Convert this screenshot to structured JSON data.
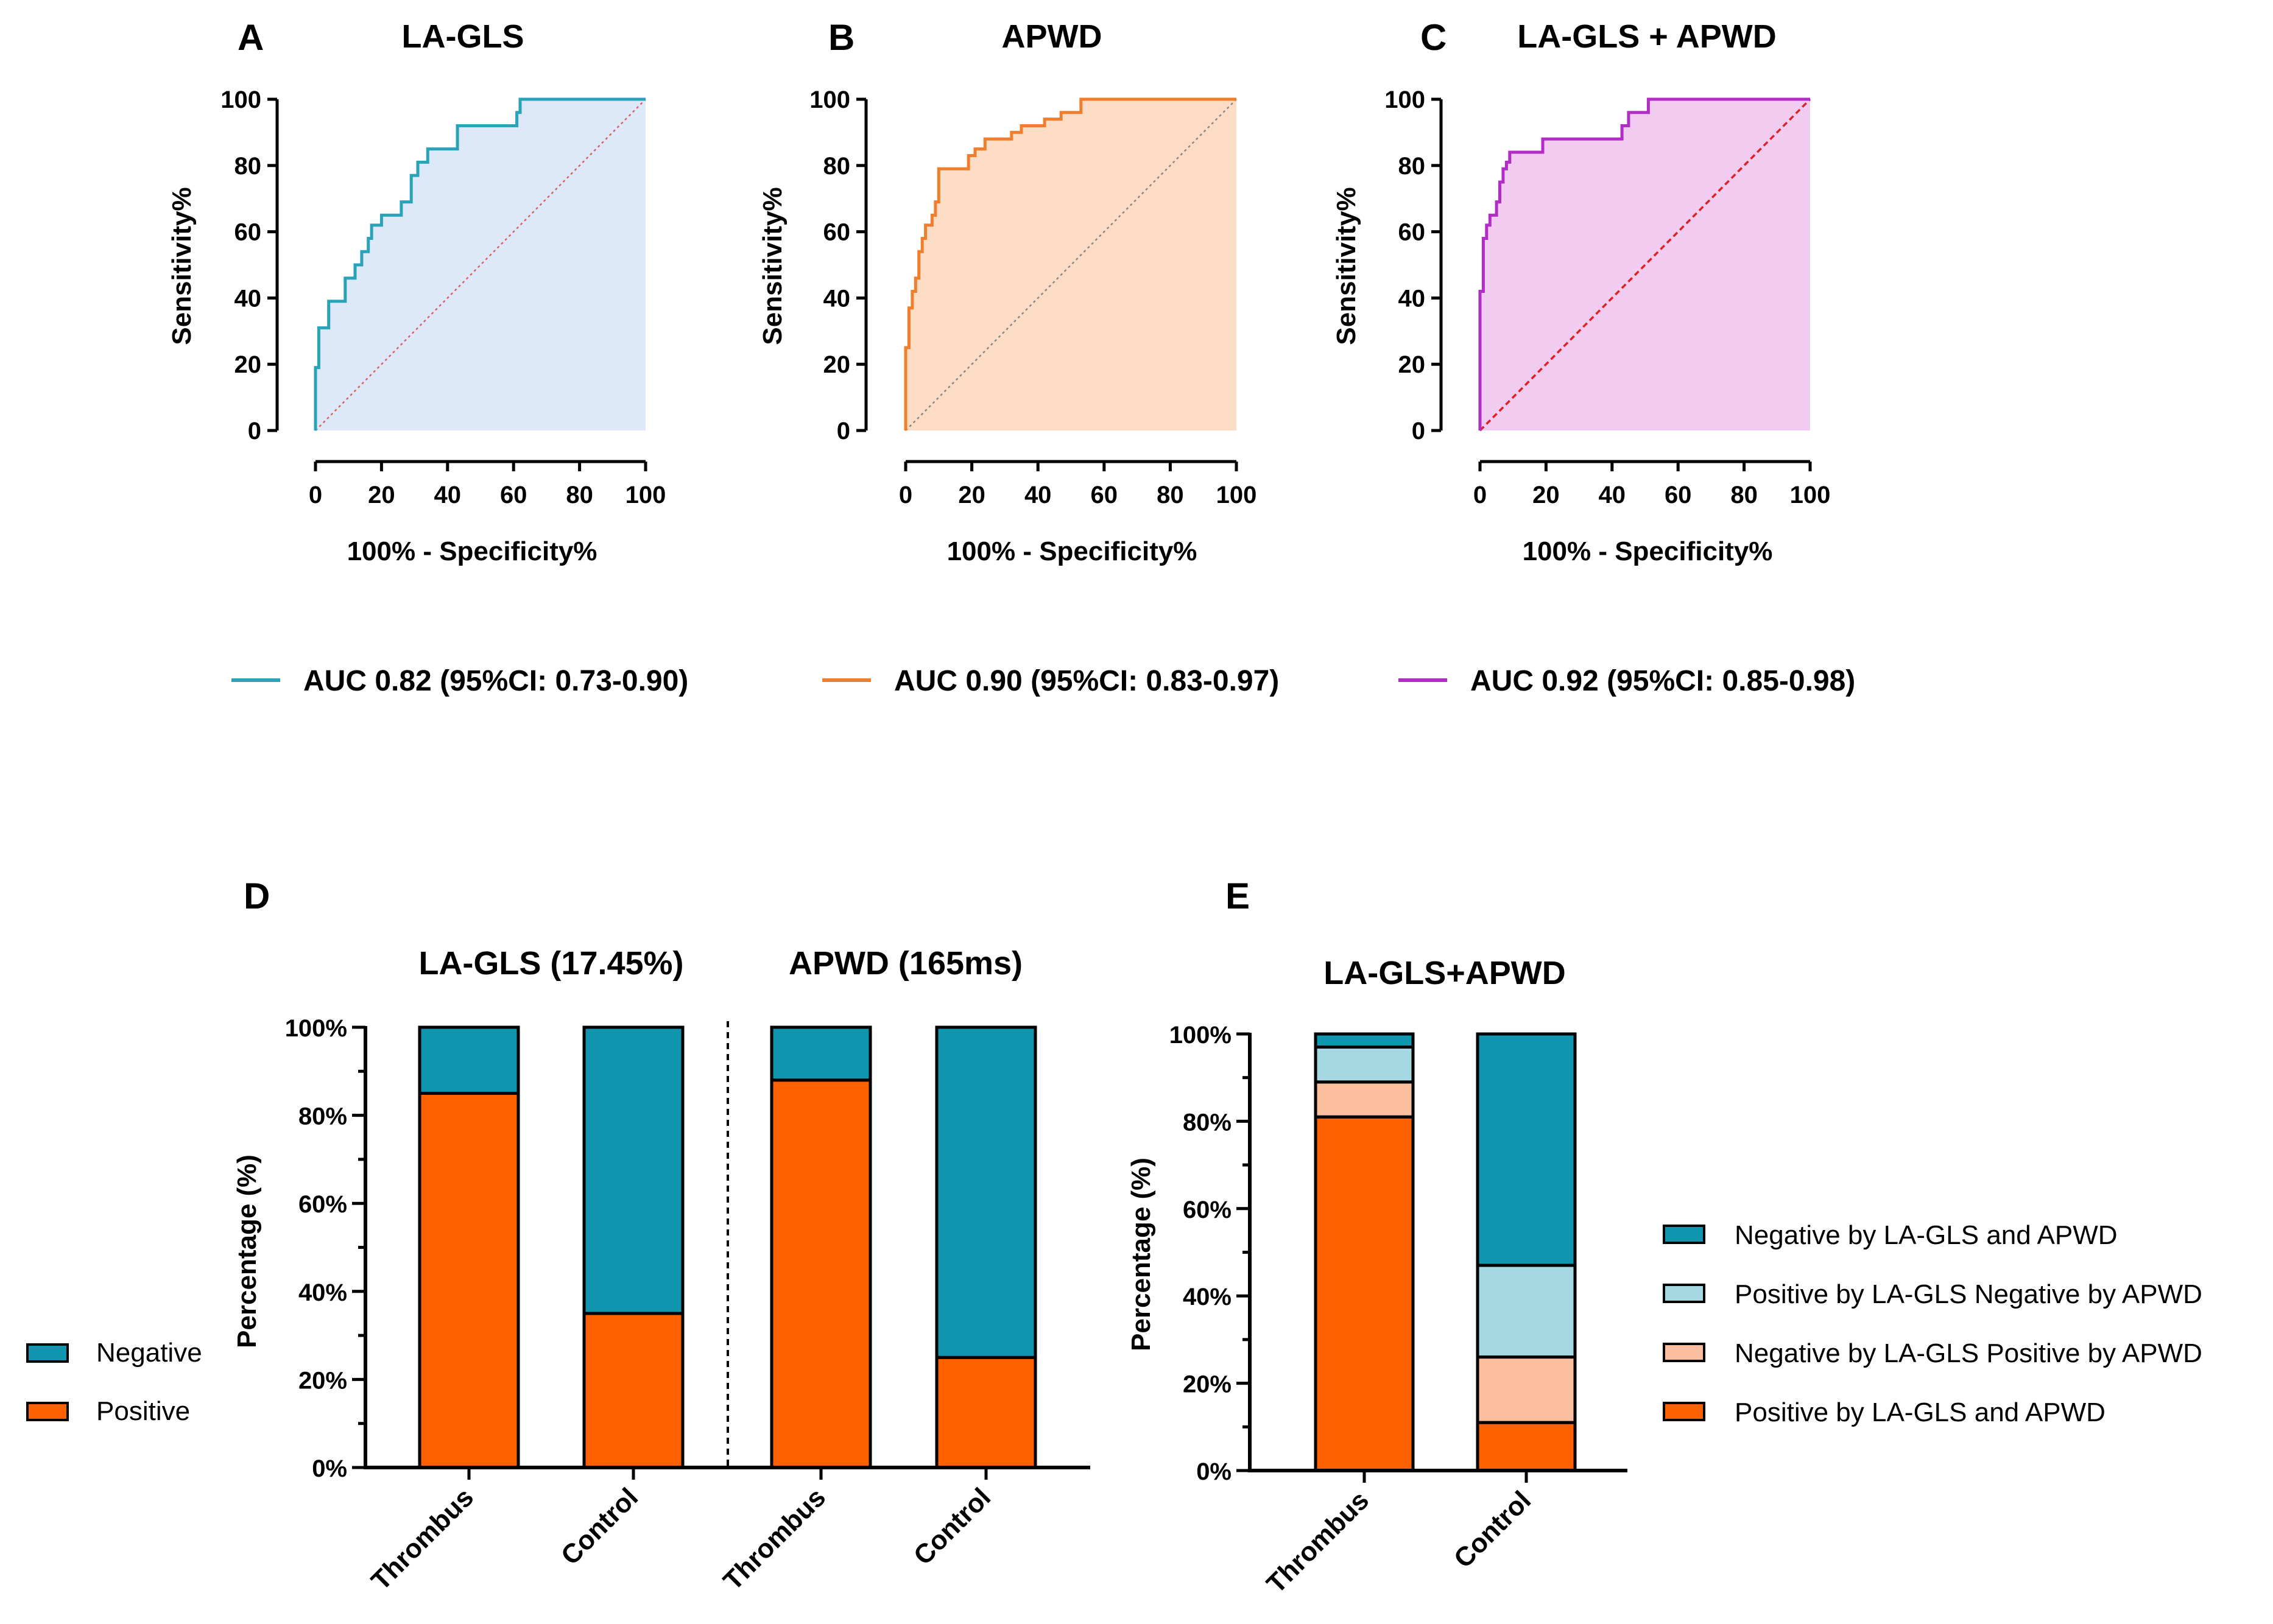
{
  "colors": {
    "la_gls": "#2aa3b8",
    "la_gls_fill": "#dde9f8",
    "apwd": "#ef7f2d",
    "apwd_fill": "#fcdcc4",
    "combined": "#b22cc6",
    "combined_fill": "#f2ccf0",
    "negative": "#1196b0",
    "positive": "#ff6000",
    "pos_neg": "#a5d8e2",
    "neg_pos": "#fbbf9f",
    "diag_a": "#e06060",
    "diag_b": "#888888",
    "diag_c": "#e02020"
  },
  "chart_data": [
    {
      "type": "line",
      "panel": "A",
      "title": "LA-GLS",
      "xlabel": "100% - Specificity%",
      "ylabel": "Sensitivity%",
      "xlim": [
        0,
        100
      ],
      "ylim": [
        0,
        100
      ],
      "xticks": [
        "0",
        "20",
        "40",
        "60",
        "80",
        "100"
      ],
      "yticks": [
        "0",
        "20",
        "40",
        "60",
        "80",
        "100"
      ],
      "legend": "AUC 0.82 (95%CI: 0.73-0.90)",
      "color_key": "la_gls",
      "fill_key": "la_gls_fill",
      "diag_key": "diag_a",
      "points": [
        [
          0,
          0
        ],
        [
          0,
          19
        ],
        [
          1,
          19
        ],
        [
          1,
          31
        ],
        [
          4,
          31
        ],
        [
          4,
          39
        ],
        [
          9,
          39
        ],
        [
          9,
          46
        ],
        [
          12,
          46
        ],
        [
          12,
          50
        ],
        [
          14,
          50
        ],
        [
          14,
          54
        ],
        [
          16,
          54
        ],
        [
          16,
          58
        ],
        [
          17,
          58
        ],
        [
          17,
          62
        ],
        [
          20,
          62
        ],
        [
          20,
          65
        ],
        [
          26,
          65
        ],
        [
          26,
          69
        ],
        [
          29,
          69
        ],
        [
          29,
          77
        ],
        [
          31,
          77
        ],
        [
          31,
          81
        ],
        [
          34,
          81
        ],
        [
          34,
          85
        ],
        [
          43,
          85
        ],
        [
          43,
          92
        ],
        [
          61,
          92
        ],
        [
          61,
          96
        ],
        [
          62,
          96
        ],
        [
          62,
          100
        ],
        [
          100,
          100
        ]
      ]
    },
    {
      "type": "line",
      "panel": "B",
      "title": "APWD",
      "xlabel": "100% - Specificity%",
      "ylabel": "Sensitivity%",
      "xlim": [
        0,
        100
      ],
      "ylim": [
        0,
        100
      ],
      "xticks": [
        "0",
        "20",
        "40",
        "60",
        "80",
        "100"
      ],
      "yticks": [
        "0",
        "20",
        "40",
        "60",
        "80",
        "100"
      ],
      "legend": "AUC 0.90 (95%CI: 0.83-0.97)",
      "color_key": "apwd",
      "fill_key": "apwd_fill",
      "diag_key": "diag_b",
      "points": [
        [
          0,
          0
        ],
        [
          0,
          25
        ],
        [
          1,
          25
        ],
        [
          1,
          37
        ],
        [
          2,
          37
        ],
        [
          2,
          42
        ],
        [
          3,
          42
        ],
        [
          3,
          46
        ],
        [
          4,
          46
        ],
        [
          4,
          54
        ],
        [
          5,
          54
        ],
        [
          5,
          58
        ],
        [
          6,
          58
        ],
        [
          6,
          62
        ],
        [
          8,
          62
        ],
        [
          8,
          65
        ],
        [
          9,
          65
        ],
        [
          9,
          69
        ],
        [
          10,
          69
        ],
        [
          10,
          79
        ],
        [
          19,
          79
        ],
        [
          19,
          83
        ],
        [
          21,
          83
        ],
        [
          21,
          85
        ],
        [
          24,
          85
        ],
        [
          24,
          88
        ],
        [
          32,
          88
        ],
        [
          32,
          90
        ],
        [
          35,
          90
        ],
        [
          35,
          92
        ],
        [
          42,
          92
        ],
        [
          42,
          94
        ],
        [
          47,
          94
        ],
        [
          47,
          96
        ],
        [
          53,
          96
        ],
        [
          53,
          100
        ],
        [
          100,
          100
        ]
      ]
    },
    {
      "type": "line",
      "panel": "C",
      "title": "LA-GLS + APWD",
      "xlabel": "100% - Specificity%",
      "ylabel": "Sensitivity%",
      "xlim": [
        0,
        100
      ],
      "ylim": [
        0,
        100
      ],
      "xticks": [
        "0",
        "20",
        "40",
        "60",
        "80",
        "100"
      ],
      "yticks": [
        "0",
        "20",
        "40",
        "60",
        "80",
        "100"
      ],
      "legend": "AUC 0.92 (95%CI: 0.85-0.98)",
      "color_key": "combined",
      "fill_key": "combined_fill",
      "diag_key": "diag_c",
      "points": [
        [
          0,
          0
        ],
        [
          0,
          42
        ],
        [
          1,
          42
        ],
        [
          1,
          58
        ],
        [
          2,
          58
        ],
        [
          2,
          62
        ],
        [
          3,
          62
        ],
        [
          3,
          65
        ],
        [
          5,
          65
        ],
        [
          5,
          69
        ],
        [
          6,
          69
        ],
        [
          6,
          75
        ],
        [
          7,
          75
        ],
        [
          7,
          79
        ],
        [
          8,
          79
        ],
        [
          8,
          81
        ],
        [
          9,
          81
        ],
        [
          9,
          84
        ],
        [
          19,
          84
        ],
        [
          19,
          88
        ],
        [
          43,
          88
        ],
        [
          43,
          92
        ],
        [
          45,
          92
        ],
        [
          45,
          96
        ],
        [
          51,
          96
        ],
        [
          51,
          100
        ],
        [
          100,
          100
        ]
      ]
    },
    {
      "type": "bar",
      "stacked": true,
      "panel": "D",
      "ylabel": "Percentage (%)",
      "ylim": [
        0,
        100
      ],
      "yticks": [
        "0%",
        "20%",
        "40%",
        "60%",
        "80%",
        "100%"
      ],
      "groups": [
        {
          "title": "LA-GLS (17.45%)",
          "categories": [
            "Thrombus",
            "Control"
          ]
        },
        {
          "title": "APWD (165ms)",
          "categories": [
            "Thrombus",
            "Control"
          ]
        }
      ],
      "categories": [
        "Thrombus",
        "Control",
        "Thrombus",
        "Control"
      ],
      "series": [
        {
          "name": "Positive",
          "color_key": "positive",
          "values": [
            85,
            35,
            88,
            25
          ]
        },
        {
          "name": "Negative",
          "color_key": "negative",
          "values": [
            15,
            65,
            12,
            75
          ]
        }
      ],
      "legend_order": [
        "Negative",
        "Positive"
      ]
    },
    {
      "type": "bar",
      "stacked": true,
      "panel": "E",
      "title": "LA-GLS+APWD",
      "ylabel": "Percentage (%)",
      "ylim": [
        0,
        100
      ],
      "yticks": [
        "0%",
        "20%",
        "40%",
        "60%",
        "80%",
        "100%"
      ],
      "categories": [
        "Thrombus",
        "Control"
      ],
      "series": [
        {
          "name": "Positive by LA-GLS and APWD",
          "color_key": "positive",
          "values": [
            81,
            11
          ]
        },
        {
          "name": "Negative by LA-GLS Positive by APWD",
          "color_key": "neg_pos",
          "values": [
            8,
            15
          ]
        },
        {
          "name": "Positive by LA-GLS Negative by APWD",
          "color_key": "pos_neg",
          "values": [
            8,
            21
          ]
        },
        {
          "name": "Negative by LA-GLS and APWD",
          "color_key": "negative",
          "values": [
            3,
            53
          ]
        }
      ],
      "legend_order": [
        "Negative by LA-GLS and APWD",
        "Positive by LA-GLS Negative by APWD",
        "Negative by LA-GLS Positive by APWD",
        "Positive by LA-GLS and APWD"
      ]
    }
  ]
}
